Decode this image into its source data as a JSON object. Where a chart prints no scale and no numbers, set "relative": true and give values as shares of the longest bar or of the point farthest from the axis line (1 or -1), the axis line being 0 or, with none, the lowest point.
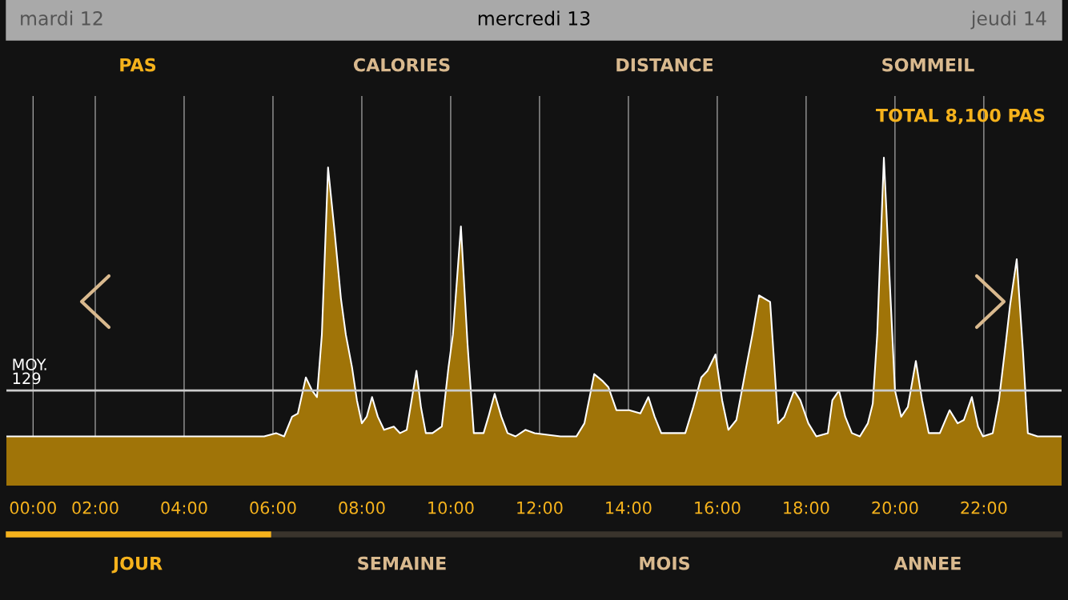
{
  "chart_data": {
    "type": "area",
    "relative": true,
    "x": [
      0.0,
      5.8,
      6.07,
      6.25,
      6.43,
      6.56,
      6.74,
      6.88,
      6.99,
      7.1,
      7.24,
      7.39,
      7.53,
      7.64,
      7.78,
      7.89,
      8.0,
      8.11,
      8.23,
      8.36,
      8.5,
      8.72,
      8.86,
      9.01,
      9.12,
      9.23,
      9.33,
      9.44,
      9.59,
      9.8,
      9.95,
      10.05,
      10.23,
      10.38,
      10.52,
      10.74,
      10.85,
      10.99,
      11.14,
      11.28,
      11.46,
      11.68,
      11.89,
      12.47,
      12.83,
      13.01,
      13.23,
      13.41,
      13.55,
      13.73,
      14.02,
      14.27,
      14.45,
      14.59,
      14.74,
      14.99,
      15.28,
      15.46,
      15.64,
      15.78,
      15.96,
      16.11,
      16.25,
      16.43,
      16.65,
      16.79,
      16.94,
      17.19,
      17.37,
      17.51,
      17.73,
      17.87,
      18.05,
      18.23,
      18.49,
      18.59,
      18.74,
      18.88,
      19.03,
      19.21,
      19.39,
      19.5,
      19.6,
      19.75,
      19.89,
      20.0,
      20.14,
      20.29,
      20.47,
      20.61,
      20.76,
      21.01,
      21.23,
      21.41,
      21.55,
      21.73,
      21.87,
      21.98,
      22.2,
      22.34,
      22.49,
      22.59,
      22.74,
      22.88,
      22.99,
      23.21,
      23.75
    ],
    "series": [
      {
        "color": "#a07408",
        "values": [
          0.15,
          0.15,
          0.16,
          0.15,
          0.21,
          0.22,
          0.33,
          0.29,
          0.27,
          0.46,
          0.97,
          0.77,
          0.57,
          0.46,
          0.36,
          0.26,
          0.19,
          0.21,
          0.27,
          0.21,
          0.17,
          0.18,
          0.16,
          0.17,
          0.26,
          0.35,
          0.24,
          0.16,
          0.16,
          0.18,
          0.36,
          0.46,
          0.79,
          0.43,
          0.16,
          0.16,
          0.21,
          0.28,
          0.21,
          0.16,
          0.15,
          0.17,
          0.16,
          0.15,
          0.15,
          0.19,
          0.34,
          0.32,
          0.3,
          0.23,
          0.23,
          0.22,
          0.27,
          0.21,
          0.16,
          0.16,
          0.16,
          0.24,
          0.33,
          0.35,
          0.4,
          0.26,
          0.17,
          0.2,
          0.36,
          0.46,
          0.58,
          0.56,
          0.19,
          0.21,
          0.29,
          0.26,
          0.19,
          0.15,
          0.16,
          0.26,
          0.29,
          0.21,
          0.16,
          0.15,
          0.19,
          0.25,
          0.46,
          1.0,
          0.6,
          0.29,
          0.21,
          0.24,
          0.38,
          0.26,
          0.16,
          0.16,
          0.23,
          0.19,
          0.2,
          0.27,
          0.18,
          0.15,
          0.16,
          0.26,
          0.43,
          0.55,
          0.69,
          0.41,
          0.16,
          0.15,
          0.15
        ]
      }
    ],
    "xlim": [
      0,
      23.75
    ],
    "xticks": [
      {
        "value": 0.6,
        "label": "00:00"
      },
      {
        "value": 2,
        "label": "02:00"
      },
      {
        "value": 4,
        "label": "04:00"
      },
      {
        "value": 6,
        "label": "06:00"
      },
      {
        "value": 8,
        "label": "08:00"
      },
      {
        "value": 10,
        "label": "10:00"
      },
      {
        "value": 12,
        "label": "12:00"
      },
      {
        "value": 14,
        "label": "14:00"
      },
      {
        "value": 16,
        "label": "16:00"
      },
      {
        "value": 18,
        "label": "18:00"
      },
      {
        "value": 20,
        "label": "20:00"
      },
      {
        "value": 22,
        "label": "22:00"
      }
    ],
    "grid": "x",
    "ref_lines": [
      {
        "axis": "y",
        "value": 0.29,
        "label": "MOY.\n129",
        "color": "#cccccc"
      }
    ],
    "annotations": [
      "mardi 12",
      "mercredi 13",
      "jeudi 14",
      "PAS",
      "CALORIES",
      "DISTANCE",
      "SOMMEIL",
      "TOTAL 8,100 PAS",
      "JOUR",
      "SEMAINE",
      "MOIS",
      "ANNEE"
    ]
  }
}
